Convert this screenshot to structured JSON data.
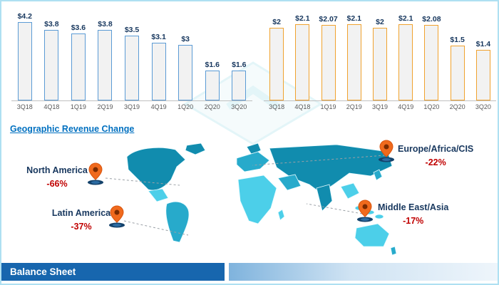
{
  "chart_data": [
    {
      "type": "bar",
      "name": "revenue-history-left",
      "categories": [
        "3Q18",
        "4Q18",
        "1Q19",
        "2Q19",
        "3Q19",
        "4Q19",
        "1Q20",
        "2Q20",
        "3Q20"
      ],
      "values": [
        4.2,
        3.8,
        3.6,
        3.8,
        3.5,
        3.1,
        3,
        1.6,
        1.6
      ],
      "labels": [
        "$4.2",
        "$3.8",
        "$3.6",
        "$3.8",
        "$3.5",
        "$3.1",
        "$3",
        "$1.6",
        "$1.6"
      ],
      "ylim": [
        0,
        4.6
      ],
      "bar_border": "#5b9bd5",
      "bar_fill": "#f2f2f2",
      "grid": false,
      "legend": "none"
    },
    {
      "type": "bar",
      "name": "revenue-history-right",
      "categories": [
        "3Q18",
        "4Q18",
        "1Q19",
        "2Q19",
        "3Q19",
        "4Q19",
        "1Q20",
        "2Q20",
        "3Q20"
      ],
      "values": [
        2,
        2.1,
        2.07,
        2.1,
        2,
        2.1,
        2.08,
        1.5,
        1.4
      ],
      "labels": [
        "$2",
        "$2.1",
        "$2.07",
        "$2.1",
        "$2",
        "$2.1",
        "$2.08",
        "$1.5",
        "$1.4"
      ],
      "ylim": [
        0,
        2.35
      ],
      "bar_border": "#f0a22e",
      "bar_fill": "#f2f2f2",
      "grid": false,
      "legend": "none"
    }
  ],
  "geo": {
    "title": "Geographic Revenue Change",
    "regions": [
      {
        "id": "north-america",
        "name": "North America",
        "change": "-66%"
      },
      {
        "id": "latin-america",
        "name": "Latin America",
        "change": "-37%"
      },
      {
        "id": "europe-africa-cis",
        "name": "Europe/Africa/CIS",
        "change": "-22%"
      },
      {
        "id": "middle-east-asia",
        "name": "Middle East/Asia",
        "change": "-17%"
      }
    ]
  },
  "footer": {
    "title": "Balance Sheet"
  },
  "colors": {
    "accent_blue": "#0070c0",
    "negative_red": "#c00000",
    "bar_blue_border": "#5b9bd5",
    "bar_orange_border": "#f0a22e",
    "footer_blue": "#1766ae",
    "map_dark_teal": "#118cae",
    "map_mid_teal": "#27aacb",
    "map_light_cyan": "#4ccfe9"
  }
}
